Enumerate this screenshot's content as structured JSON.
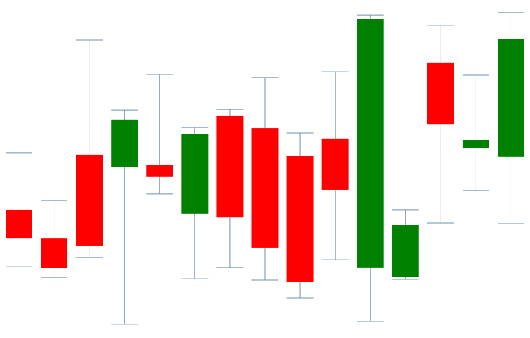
{
  "chart_data": {
    "type": "candlestick",
    "title": "",
    "xlabel": "",
    "ylabel": "",
    "ylim": [
      0,
      100
    ],
    "grid": false,
    "colors": {
      "up": "#008000",
      "down": "#ff0000",
      "wick": "#6f8fae"
    },
    "candles": [
      {
        "open": 37.9,
        "high": 54.8,
        "low": 21.2,
        "close": 29.5
      },
      {
        "open": 29.5,
        "high": 40.7,
        "low": 17.9,
        "close": 20.6
      },
      {
        "open": 54.2,
        "high": 88.2,
        "low": 23.8,
        "close": 27.3
      },
      {
        "open": 50.5,
        "high": 67.4,
        "low": 4.1,
        "close": 64.6
      },
      {
        "open": 51.3,
        "high": 78.0,
        "low": 42.6,
        "close": 47.7
      },
      {
        "open": 36.7,
        "high": 62.3,
        "low": 17.5,
        "close": 60.3
      },
      {
        "open": 65.8,
        "high": 67.6,
        "low": 20.8,
        "close": 35.8
      },
      {
        "open": 62.1,
        "high": 77.0,
        "low": 17.1,
        "close": 26.7
      },
      {
        "open": 53.8,
        "high": 60.7,
        "low": 11.8,
        "close": 16.5
      },
      {
        "open": 58.9,
        "high": 78.8,
        "low": 23.2,
        "close": 43.8
      },
      {
        "open": 20.8,
        "high": 95.5,
        "low": 4.9,
        "close": 94.3
      },
      {
        "open": 18.1,
        "high": 37.9,
        "low": 17.3,
        "close": 33.4
      },
      {
        "open": 81.5,
        "high": 92.5,
        "low": 34.0,
        "close": 63.3
      },
      {
        "open": 56.2,
        "high": 77.8,
        "low": 43.6,
        "close": 58.5
      },
      {
        "open": 53.6,
        "high": 96.3,
        "low": 33.8,
        "close": 88.6
      }
    ]
  }
}
